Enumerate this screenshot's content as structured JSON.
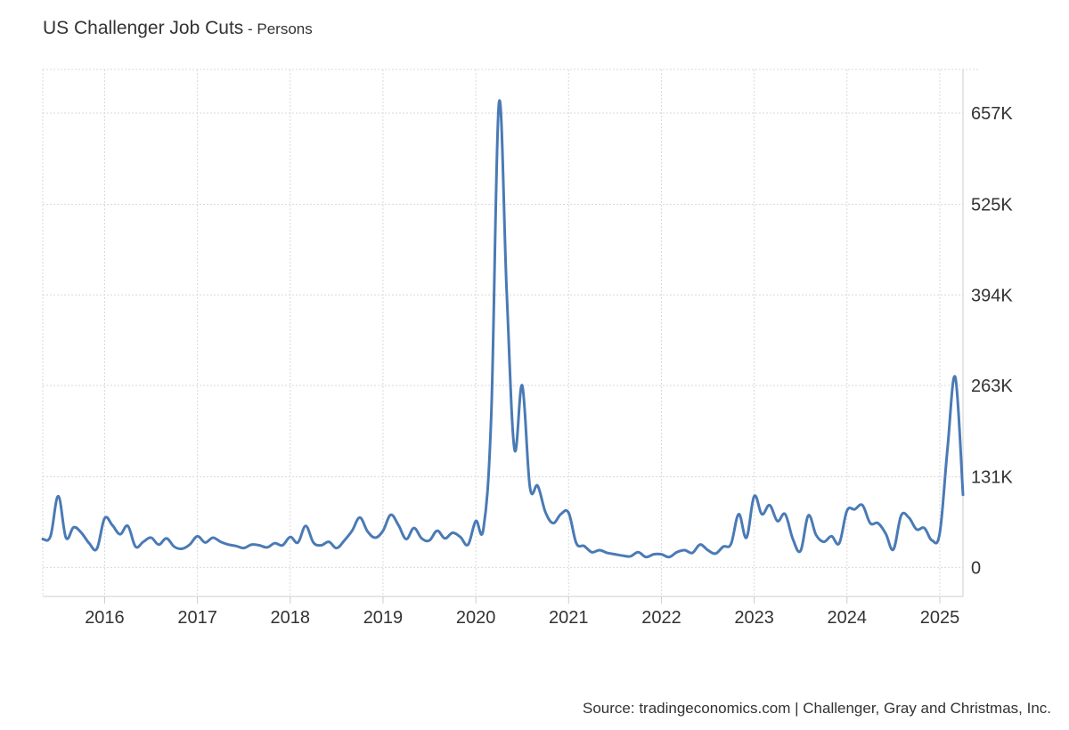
{
  "title": "US Challenger Job Cuts",
  "subtitle_separator": " - ",
  "subtitle": "Persons",
  "source": "Source: tradingeconomics.com | Challenger, Gray and Christmas, Inc.",
  "colors": {
    "line": "#4a7ab5",
    "grid": "#d9d9d9",
    "axis": "#cccccc",
    "text": "#333333"
  },
  "chart_data": {
    "type": "line",
    "title": "US Challenger Job Cuts",
    "subtitle": "Persons",
    "xlabel": "",
    "ylabel": "",
    "x_ticks": [
      "2016",
      "2017",
      "2018",
      "2019",
      "2020",
      "2021",
      "2022",
      "2023",
      "2024",
      "2025"
    ],
    "y_ticks": [
      {
        "value": 0,
        "label": "0"
      },
      {
        "value": 131000,
        "label": "131K"
      },
      {
        "value": 263000,
        "label": "263K"
      },
      {
        "value": 394000,
        "label": "394K"
      },
      {
        "value": 525000,
        "label": "525K"
      },
      {
        "value": 657000,
        "label": "657K"
      }
    ],
    "xlim": [
      "2015-05",
      "2025-04"
    ],
    "ylim": [
      -42000,
      720000
    ],
    "grid": true,
    "legend": "none",
    "series": [
      {
        "name": "",
        "x": [
          "2015-05",
          "2015-06",
          "2015-07",
          "2015-08",
          "2015-09",
          "2015-10",
          "2015-11",
          "2015-12",
          "2016-01",
          "2016-02",
          "2016-03",
          "2016-04",
          "2016-05",
          "2016-06",
          "2016-07",
          "2016-08",
          "2016-09",
          "2016-10",
          "2016-11",
          "2016-12",
          "2017-01",
          "2017-02",
          "2017-03",
          "2017-04",
          "2017-05",
          "2017-06",
          "2017-07",
          "2017-08",
          "2017-09",
          "2017-10",
          "2017-11",
          "2017-12",
          "2018-01",
          "2018-02",
          "2018-03",
          "2018-04",
          "2018-05",
          "2018-06",
          "2018-07",
          "2018-08",
          "2018-09",
          "2018-10",
          "2018-11",
          "2018-12",
          "2019-01",
          "2019-02",
          "2019-03",
          "2019-04",
          "2019-05",
          "2019-06",
          "2019-07",
          "2019-08",
          "2019-09",
          "2019-10",
          "2019-11",
          "2019-12",
          "2020-01",
          "2020-02",
          "2020-03",
          "2020-04",
          "2020-05",
          "2020-06",
          "2020-07",
          "2020-08",
          "2020-09",
          "2020-10",
          "2020-11",
          "2020-12",
          "2021-01",
          "2021-02",
          "2021-03",
          "2021-04",
          "2021-05",
          "2021-06",
          "2021-07",
          "2021-08",
          "2021-09",
          "2021-10",
          "2021-11",
          "2021-12",
          "2022-01",
          "2022-02",
          "2022-03",
          "2022-04",
          "2022-05",
          "2022-06",
          "2022-07",
          "2022-08",
          "2022-09",
          "2022-10",
          "2022-11",
          "2022-12",
          "2023-01",
          "2023-02",
          "2023-03",
          "2023-04",
          "2023-05",
          "2023-06",
          "2023-07",
          "2023-08",
          "2023-09",
          "2023-10",
          "2023-11",
          "2023-12",
          "2024-01",
          "2024-02",
          "2024-03",
          "2024-04",
          "2024-05",
          "2024-06",
          "2024-07",
          "2024-08",
          "2024-09",
          "2024-10",
          "2024-11",
          "2024-12",
          "2025-01",
          "2025-02",
          "2025-03",
          "2025-04"
        ],
        "values": [
          41000,
          45000,
          103000,
          43000,
          58000,
          50000,
          35000,
          27000,
          71000,
          61000,
          48000,
          60000,
          30000,
          37000,
          43000,
          33000,
          42000,
          30000,
          27000,
          33000,
          45000,
          36000,
          43000,
          37000,
          33000,
          31000,
          28000,
          33000,
          32000,
          29000,
          35000,
          32000,
          44000,
          36000,
          60000,
          36000,
          32000,
          37000,
          28000,
          39000,
          53000,
          72000,
          52000,
          43000,
          53000,
          76000,
          61000,
          41000,
          57000,
          42000,
          39000,
          53000,
          42000,
          50000,
          44000,
          33000,
          67000,
          57000,
          221000,
          672000,
          397000,
          171000,
          263000,
          116000,
          118000,
          80000,
          64000,
          77000,
          79000,
          35000,
          31000,
          22000,
          25000,
          21000,
          19000,
          17000,
          16000,
          22000,
          15000,
          19000,
          19000,
          15000,
          22000,
          25000,
          21000,
          33000,
          25000,
          20000,
          30000,
          34000,
          77000,
          43000,
          103000,
          77000,
          90000,
          67000,
          77000,
          41000,
          24000,
          75000,
          47000,
          37000,
          45000,
          35000,
          82000,
          84000,
          90000,
          64000,
          64000,
          49000,
          26000,
          75000,
          72000,
          55000,
          57000,
          39000,
          50000,
          172000,
          275000,
          105000
        ]
      }
    ]
  }
}
